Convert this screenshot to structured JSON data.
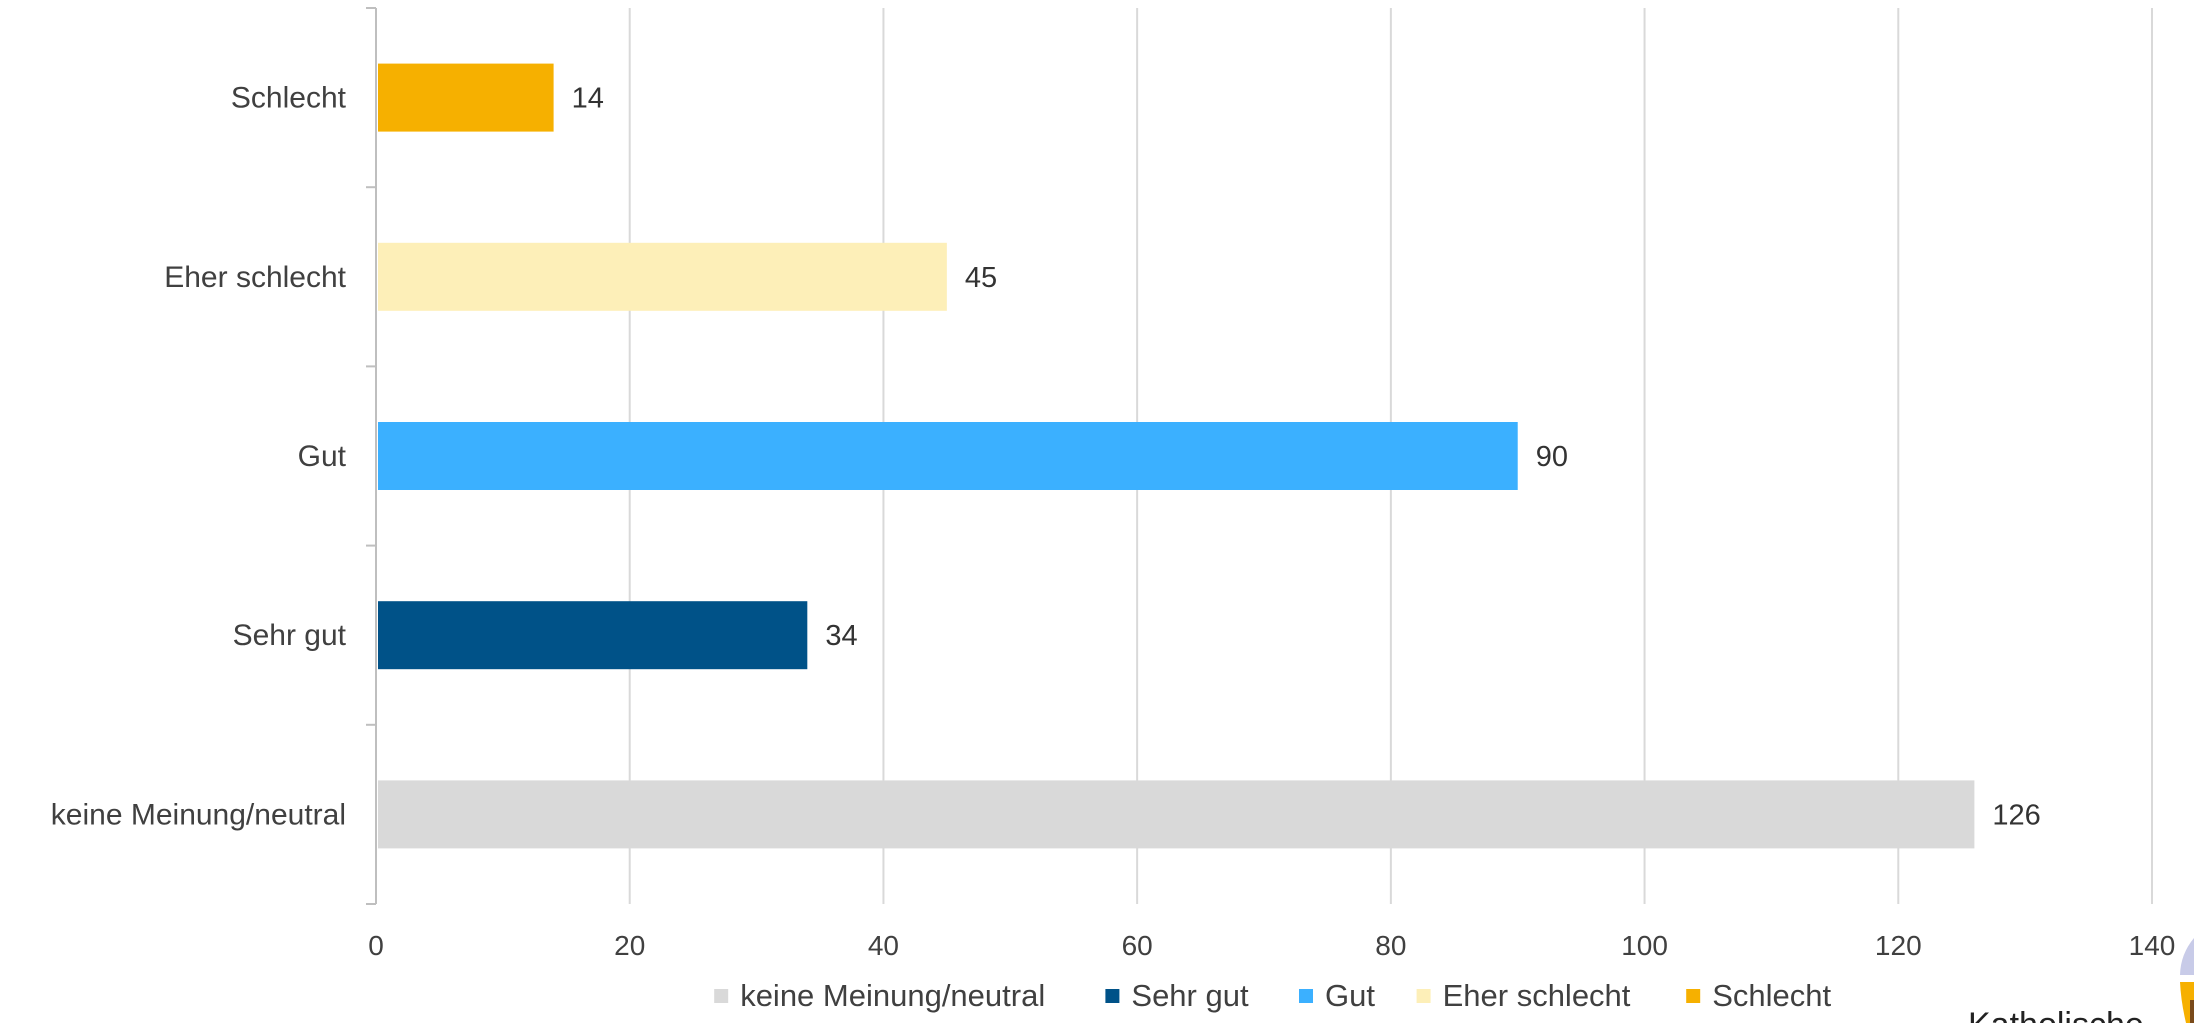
{
  "chart_data": {
    "type": "bar",
    "orientation": "horizontal",
    "categories": [
      "keine Meinung/neutral",
      "Sehr gut",
      "Gut",
      "Eher schlecht",
      "Schlecht"
    ],
    "values": [
      126,
      34,
      90,
      45,
      14
    ],
    "colors": [
      "#d9d9d9",
      "#005288",
      "#3bb0ff",
      "#fdefb8",
      "#f6b000"
    ],
    "title": "",
    "xlabel": "",
    "ylabel": "",
    "xlim": [
      0,
      140
    ],
    "xticks": [
      0,
      20,
      40,
      60,
      80,
      100,
      120,
      140
    ],
    "grid": "vertical",
    "data_labels": true,
    "legend": {
      "position": "bottom",
      "entries": [
        "keine Meinung/neutral",
        "Sehr gut",
        "Gut",
        "Eher schlecht",
        "Schlecht"
      ]
    }
  },
  "branding": {
    "text": "Katholische",
    "colors": [
      "#f6b000",
      "#c8cbe8",
      "#7a4a1a"
    ]
  }
}
